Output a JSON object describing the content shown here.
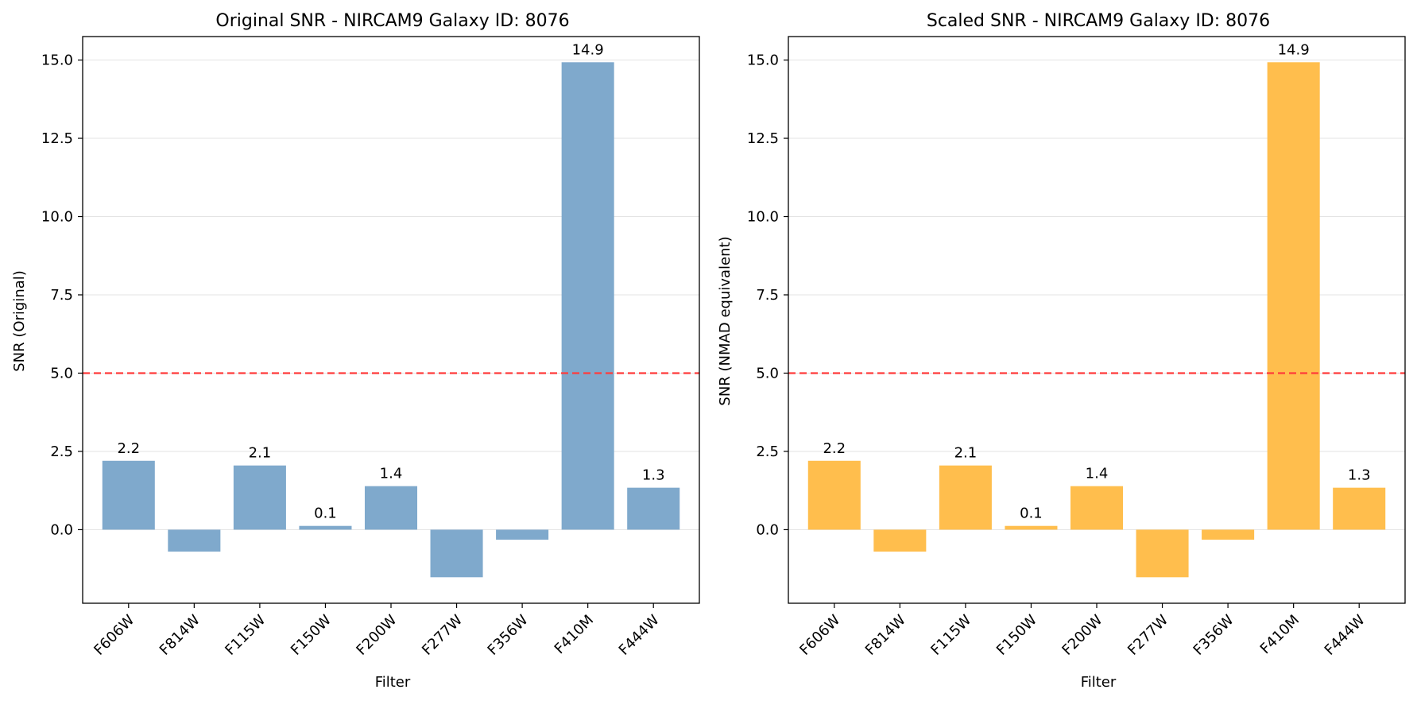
{
  "chart_data": [
    {
      "type": "bar",
      "title": "Original SNR - NIRCAM9 Galaxy ID: 8076",
      "xlabel": "Filter",
      "ylabel": "SNR (Original)",
      "categories": [
        "F606W",
        "F814W",
        "F115W",
        "F150W",
        "F200W",
        "F277W",
        "F356W",
        "F410M",
        "F444W"
      ],
      "values": [
        2.2,
        -0.7,
        2.05,
        0.12,
        1.39,
        -1.52,
        -0.32,
        14.93,
        1.34
      ],
      "bar_labels": [
        "2.2",
        "",
        "2.1",
        "0.1",
        "1.4",
        "",
        "",
        "14.9",
        "1.3"
      ],
      "ylim": [
        -2.35,
        15.75
      ],
      "yticks": [
        "0.0",
        "2.5",
        "5.0",
        "7.5",
        "10.0",
        "12.5",
        "15.0"
      ],
      "ytick_values": [
        0,
        2.5,
        5,
        7.5,
        10,
        12.5,
        15
      ],
      "threshold": 5,
      "bar_color": "#7fa9cc",
      "threshold_color": "#ff3b3b",
      "grid": true
    },
    {
      "type": "bar",
      "title": "Scaled SNR - NIRCAM9 Galaxy ID: 8076",
      "xlabel": "Filter",
      "ylabel": "SNR (NMAD equivalent)",
      "categories": [
        "F606W",
        "F814W",
        "F115W",
        "F150W",
        "F200W",
        "F277W",
        "F356W",
        "F410M",
        "F444W"
      ],
      "values": [
        2.2,
        -0.7,
        2.05,
        0.12,
        1.39,
        -1.52,
        -0.32,
        14.93,
        1.34
      ],
      "bar_labels": [
        "2.2",
        "",
        "2.1",
        "0.1",
        "1.4",
        "",
        "",
        "14.9",
        "1.3"
      ],
      "ylim": [
        -2.35,
        15.75
      ],
      "yticks": [
        "0.0",
        "2.5",
        "5.0",
        "7.5",
        "10.0",
        "12.5",
        "15.0"
      ],
      "ytick_values": [
        0,
        2.5,
        5,
        7.5,
        10,
        12.5,
        15
      ],
      "threshold": 5,
      "bar_color": "#ffbe4d",
      "threshold_color": "#ff3b3b",
      "grid": true
    }
  ]
}
